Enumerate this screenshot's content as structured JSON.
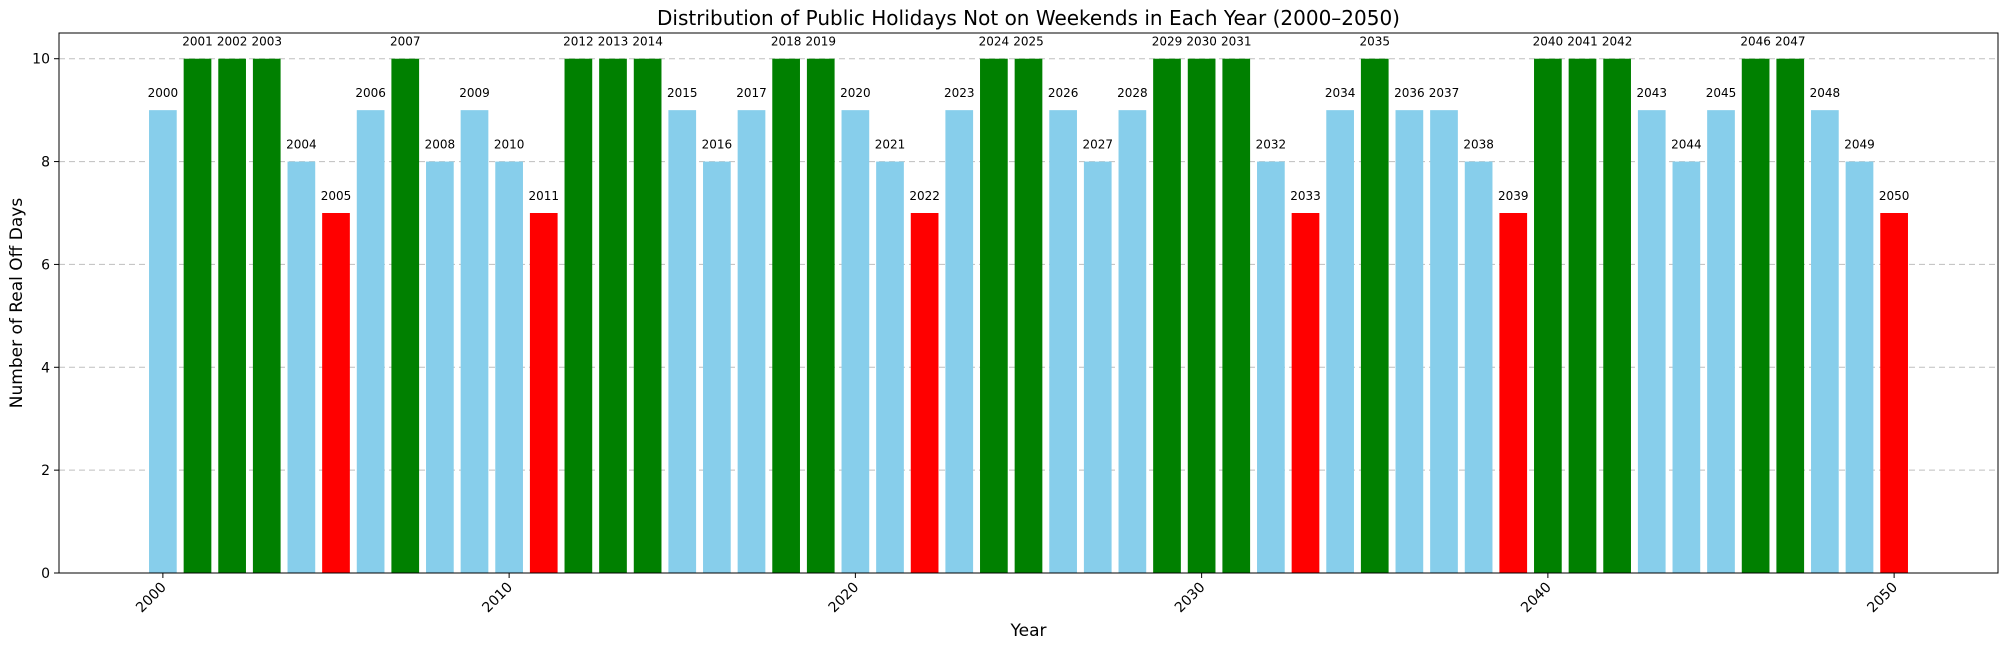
{
  "chart_data": {
    "type": "bar",
    "title": "Distribution of Public Holidays Not on Weekends in Each Year (2000–2050)",
    "xlabel": "Year",
    "ylabel": "Number of Real Off Days",
    "xlim": [
      1997,
      2053
    ],
    "ylim": [
      0,
      10.5
    ],
    "x_ticks": [
      2000,
      2010,
      2020,
      2030,
      2040,
      2050
    ],
    "y_ticks": [
      0,
      2,
      4,
      6,
      8,
      10
    ],
    "grid": "y-dashed",
    "colors": {
      "low": "#ff0000",
      "mid": "#87ceeb",
      "high": "#008000"
    },
    "color_rule": "value 7 red, value 8-9 sky blue, value 10 green",
    "categories": [
      2000,
      2001,
      2002,
      2003,
      2004,
      2005,
      2006,
      2007,
      2008,
      2009,
      2010,
      2011,
      2012,
      2013,
      2014,
      2015,
      2016,
      2017,
      2018,
      2019,
      2020,
      2021,
      2022,
      2023,
      2024,
      2025,
      2026,
      2027,
      2028,
      2029,
      2030,
      2031,
      2032,
      2033,
      2034,
      2035,
      2036,
      2037,
      2038,
      2039,
      2040,
      2041,
      2042,
      2043,
      2044,
      2045,
      2046,
      2047,
      2048,
      2049,
      2050
    ],
    "values": [
      9,
      10,
      10,
      10,
      8,
      7,
      9,
      10,
      8,
      9,
      8,
      7,
      10,
      10,
      10,
      9,
      8,
      9,
      10,
      10,
      9,
      8,
      7,
      9,
      10,
      10,
      9,
      8,
      9,
      10,
      10,
      10,
      8,
      7,
      9,
      10,
      9,
      9,
      8,
      7,
      10,
      10,
      10,
      9,
      8,
      9,
      10,
      10,
      9,
      8,
      7
    ]
  }
}
